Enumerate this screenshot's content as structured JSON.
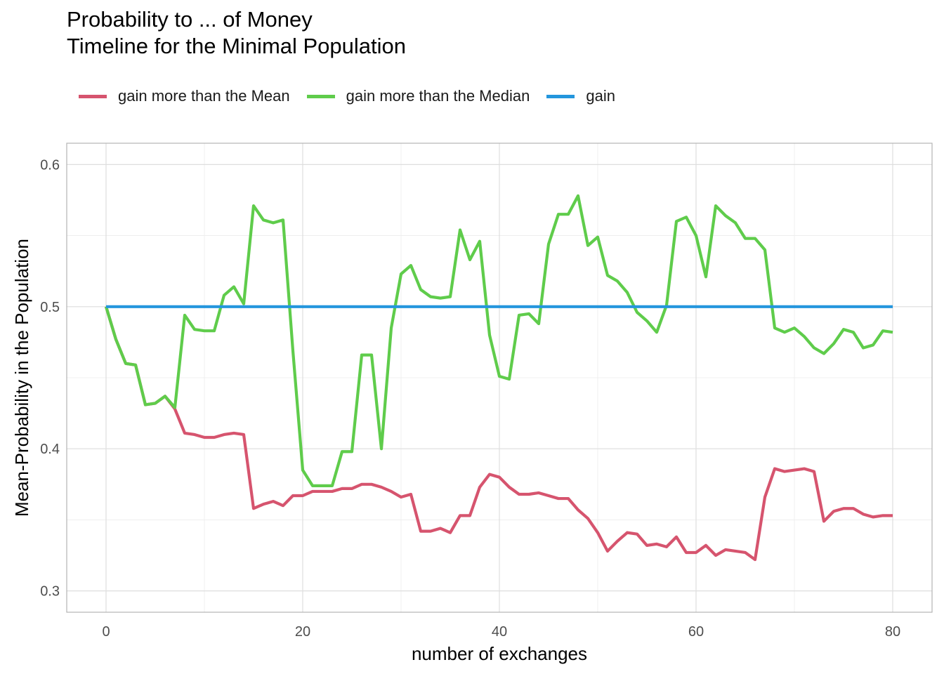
{
  "chart_data": {
    "type": "line",
    "title": "Probability to ... of Money",
    "subtitle": "Timeline for the Minimal Population",
    "xlabel": "number of exchanges",
    "ylabel": "Mean-Probability in the Population",
    "xlim": [
      -4,
      84
    ],
    "ylim": [
      0.285,
      0.615
    ],
    "xticks": [
      0,
      20,
      40,
      60,
      80
    ],
    "xtick_labels": [
      "0",
      "20",
      "40",
      "60",
      "80"
    ],
    "yticks": [
      0.3,
      0.4,
      0.5,
      0.6
    ],
    "ytick_labels": [
      "0.3",
      "0.4",
      "0.5",
      "0.6"
    ],
    "grid": true,
    "legend_position": "top-left",
    "x": [
      0,
      1,
      2,
      3,
      4,
      5,
      6,
      7,
      8,
      9,
      10,
      11,
      12,
      13,
      14,
      15,
      16,
      17,
      18,
      19,
      20,
      21,
      22,
      23,
      24,
      25,
      26,
      27,
      28,
      29,
      30,
      31,
      32,
      33,
      34,
      35,
      36,
      37,
      38,
      39,
      40,
      41,
      42,
      43,
      44,
      45,
      46,
      47,
      48,
      49,
      50,
      51,
      52,
      53,
      54,
      55,
      56,
      57,
      58,
      59,
      60,
      61,
      62,
      63,
      64,
      65,
      66,
      67,
      68,
      69,
      70,
      71,
      72,
      73,
      74,
      75,
      76,
      77,
      78,
      79,
      80
    ],
    "series": [
      {
        "name": "gain more than the Mean",
        "color": "#d6546e",
        "values": [
          0.5,
          0.477,
          0.46,
          0.459,
          0.431,
          0.432,
          0.437,
          0.428,
          0.411,
          0.41,
          0.408,
          0.408,
          0.41,
          0.411,
          0.41,
          0.358,
          0.361,
          0.363,
          0.36,
          0.367,
          0.367,
          0.37,
          0.37,
          0.37,
          0.372,
          0.372,
          0.375,
          0.375,
          0.373,
          0.37,
          0.366,
          0.368,
          0.342,
          0.342,
          0.344,
          0.341,
          0.353,
          0.353,
          0.373,
          0.382,
          0.38,
          0.373,
          0.368,
          0.368,
          0.369,
          0.367,
          0.365,
          0.365,
          0.357,
          0.351,
          0.341,
          0.328,
          0.335,
          0.341,
          0.34,
          0.332,
          0.333,
          0.331,
          0.338,
          0.327,
          0.327,
          0.332,
          0.325,
          0.329,
          0.328,
          0.327,
          0.322,
          0.366,
          0.386,
          0.384,
          0.385,
          0.386,
          0.384,
          0.349,
          0.356,
          0.358,
          0.358,
          0.354,
          0.352,
          0.353,
          0.353
        ]
      },
      {
        "name": "gain more than the Median",
        "color": "#5fcc4b",
        "values": [
          0.5,
          0.477,
          0.46,
          0.459,
          0.431,
          0.432,
          0.437,
          0.429,
          0.494,
          0.484,
          0.483,
          0.483,
          0.508,
          0.514,
          0.502,
          0.571,
          0.561,
          0.559,
          0.561,
          0.469,
          0.385,
          0.374,
          0.374,
          0.374,
          0.398,
          0.398,
          0.466,
          0.466,
          0.4,
          0.485,
          0.523,
          0.529,
          0.512,
          0.507,
          0.506,
          0.507,
          0.554,
          0.533,
          0.546,
          0.48,
          0.451,
          0.449,
          0.494,
          0.495,
          0.488,
          0.544,
          0.565,
          0.565,
          0.578,
          0.543,
          0.549,
          0.522,
          0.518,
          0.51,
          0.496,
          0.49,
          0.482,
          0.501,
          0.56,
          0.563,
          0.55,
          0.521,
          0.571,
          0.564,
          0.559,
          0.548,
          0.548,
          0.54,
          0.485,
          0.482,
          0.485,
          0.479,
          0.471,
          0.467,
          0.474,
          0.484,
          0.482,
          0.471,
          0.473,
          0.483,
          0.482
        ]
      },
      {
        "name": "gain",
        "color": "#2496dd",
        "values": [
          0.5,
          0.5,
          0.5,
          0.5,
          0.5,
          0.5,
          0.5,
          0.5,
          0.5,
          0.5,
          0.5,
          0.5,
          0.5,
          0.5,
          0.5,
          0.5,
          0.5,
          0.5,
          0.5,
          0.5,
          0.5,
          0.5,
          0.5,
          0.5,
          0.5,
          0.5,
          0.5,
          0.5,
          0.5,
          0.5,
          0.5,
          0.5,
          0.5,
          0.5,
          0.5,
          0.5,
          0.5,
          0.5,
          0.5,
          0.5,
          0.5,
          0.5,
          0.5,
          0.5,
          0.5,
          0.5,
          0.5,
          0.5,
          0.5,
          0.5,
          0.5,
          0.5,
          0.5,
          0.5,
          0.5,
          0.5,
          0.5,
          0.5,
          0.5,
          0.5,
          0.5,
          0.5,
          0.5,
          0.5,
          0.5,
          0.5,
          0.5,
          0.5,
          0.5,
          0.5,
          0.5,
          0.5,
          0.5,
          0.5,
          0.5,
          0.5,
          0.5,
          0.5,
          0.5,
          0.5,
          0.5
        ]
      }
    ]
  }
}
